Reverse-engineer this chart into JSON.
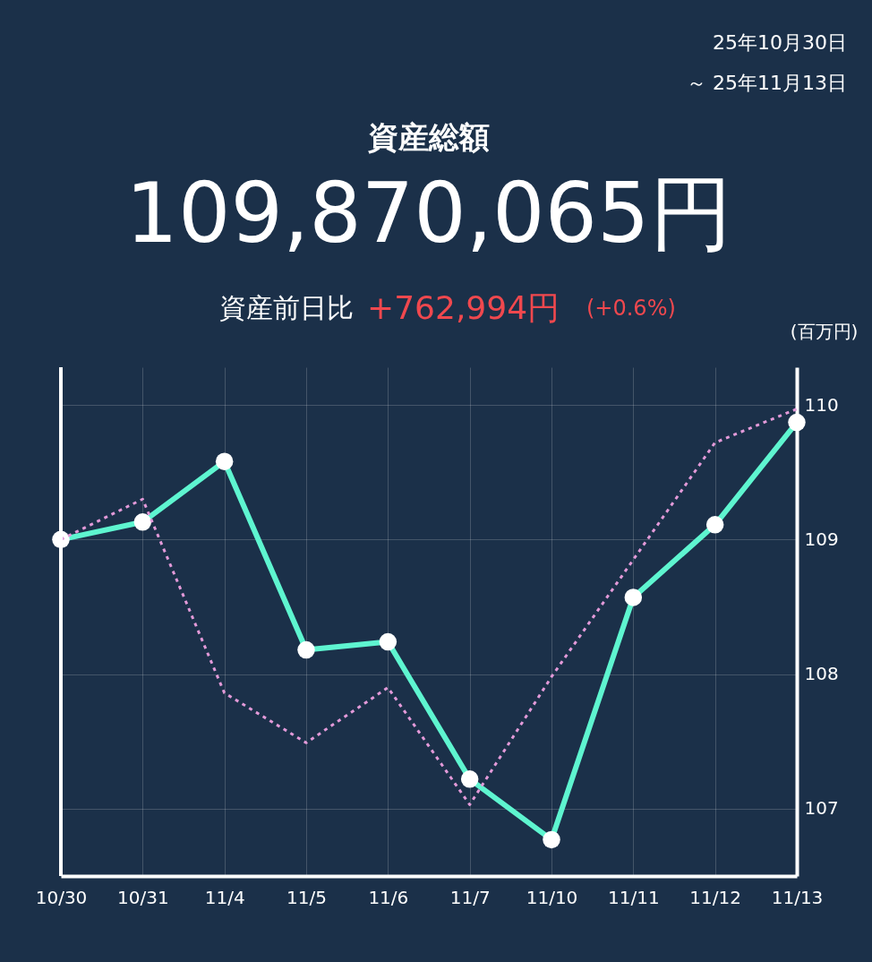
{
  "chart_data": {
    "type": "line",
    "title": "資産総額",
    "subtitle": "109,870,065円",
    "ylabel": "(百万円)",
    "categories": [
      "10/30",
      "10/31",
      "11/4",
      "11/5",
      "11/6",
      "11/7",
      "11/10",
      "11/11",
      "11/12",
      "11/13"
    ],
    "series": [
      {
        "color": "#5ef5d0",
        "marker": "circle",
        "line_style": "solid",
        "values": [
          109.0,
          109.13,
          109.58,
          108.18,
          108.24,
          107.22,
          106.77,
          108.57,
          109.11,
          109.87
        ]
      },
      {
        "color": "#e39ad9",
        "marker": "none",
        "line_style": "dotted",
        "values": [
          109.0,
          109.3,
          107.86,
          107.49,
          107.9,
          107.03,
          107.98,
          108.85,
          109.72,
          109.97
        ]
      }
    ],
    "ylim": [
      106.5,
      110.28
    ],
    "yticks": [
      107,
      108,
      109,
      110
    ],
    "grid": true,
    "annotations": [
      "25年10月30日",
      "～ 25年11月13日",
      "資産前日比",
      "+762,994円",
      "(+0.6%)"
    ]
  }
}
